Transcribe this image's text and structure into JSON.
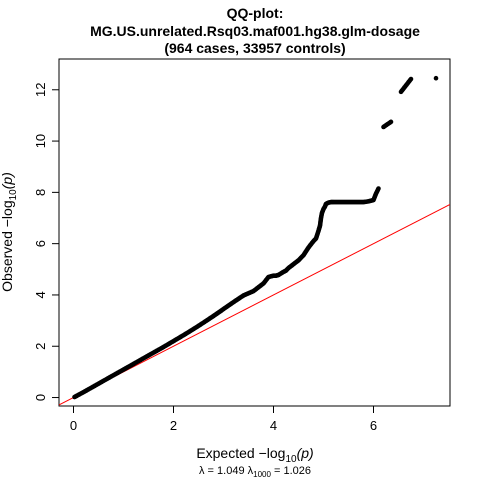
{
  "chart_data": {
    "type": "scatter",
    "title_lines": [
      "QQ-plot:",
      "MG.US.unrelated.Rsq03.maf001.hg38.glm-dosage",
      "(964 cases, 33957 controls)"
    ],
    "xlabel": "Expected  -log10(p)",
    "xlabel_main": "Expected  −log",
    "xlabel_sub": "10",
    "xlabel_tail": "(p)",
    "ylabel": "Observed  -log10(p)",
    "ylabel_main": "Observed  −log",
    "ylabel_sub": "10",
    "ylabel_tail": "(p)",
    "lambda_text": "λ = 1.049  λ",
    "lambda_sub": "1000",
    "lambda_tail": " = 1.026",
    "xlim": [
      -0.29,
      7.53
    ],
    "ylim": [
      -0.33,
      13.2
    ],
    "x_ticks": [
      0,
      2,
      4,
      6
    ],
    "y_ticks": [
      0,
      2,
      4,
      6,
      8,
      10,
      12
    ],
    "reference_line": {
      "slope": 1.0,
      "intercept": 0.0,
      "color": "#ff0000"
    },
    "point_color": "#000000",
    "grid": false,
    "series": [
      {
        "x": [
          0.02,
          0.2,
          0.4,
          0.6,
          0.8,
          1.0,
          1.2,
          1.4,
          1.6,
          1.8,
          2.0,
          2.2,
          2.4,
          2.6,
          2.8,
          3.0,
          3.2,
          3.4,
          3.6,
          3.8,
          3.9,
          4.0,
          4.05,
          4.1,
          4.2,
          4.25,
          4.3,
          4.4,
          4.5,
          4.6,
          4.7,
          4.8,
          4.85,
          4.9,
          4.93,
          4.95,
          4.97,
          5.0,
          5.03,
          5.05,
          5.1,
          5.15,
          5.2,
          5.3,
          5.4,
          5.5,
          5.6,
          5.7,
          5.8,
          5.9,
          6.0,
          6.05,
          6.1,
          6.2,
          6.35,
          6.55,
          6.75,
          7.25
        ],
        "y": [
          0.02,
          0.21,
          0.43,
          0.65,
          0.87,
          1.09,
          1.31,
          1.53,
          1.75,
          1.97,
          2.2,
          2.43,
          2.67,
          2.92,
          3.18,
          3.45,
          3.72,
          3.98,
          4.15,
          4.45,
          4.7,
          4.75,
          4.75,
          4.78,
          4.9,
          4.95,
          5.05,
          5.2,
          5.35,
          5.55,
          5.85,
          6.1,
          6.2,
          6.5,
          6.7,
          7.0,
          7.2,
          7.35,
          7.45,
          7.55,
          7.6,
          7.62,
          7.62,
          7.62,
          7.62,
          7.62,
          7.62,
          7.62,
          7.62,
          7.65,
          7.7,
          7.95,
          8.15,
          10.55,
          10.75,
          11.92,
          12.42,
          12.45
        ]
      }
    ]
  }
}
